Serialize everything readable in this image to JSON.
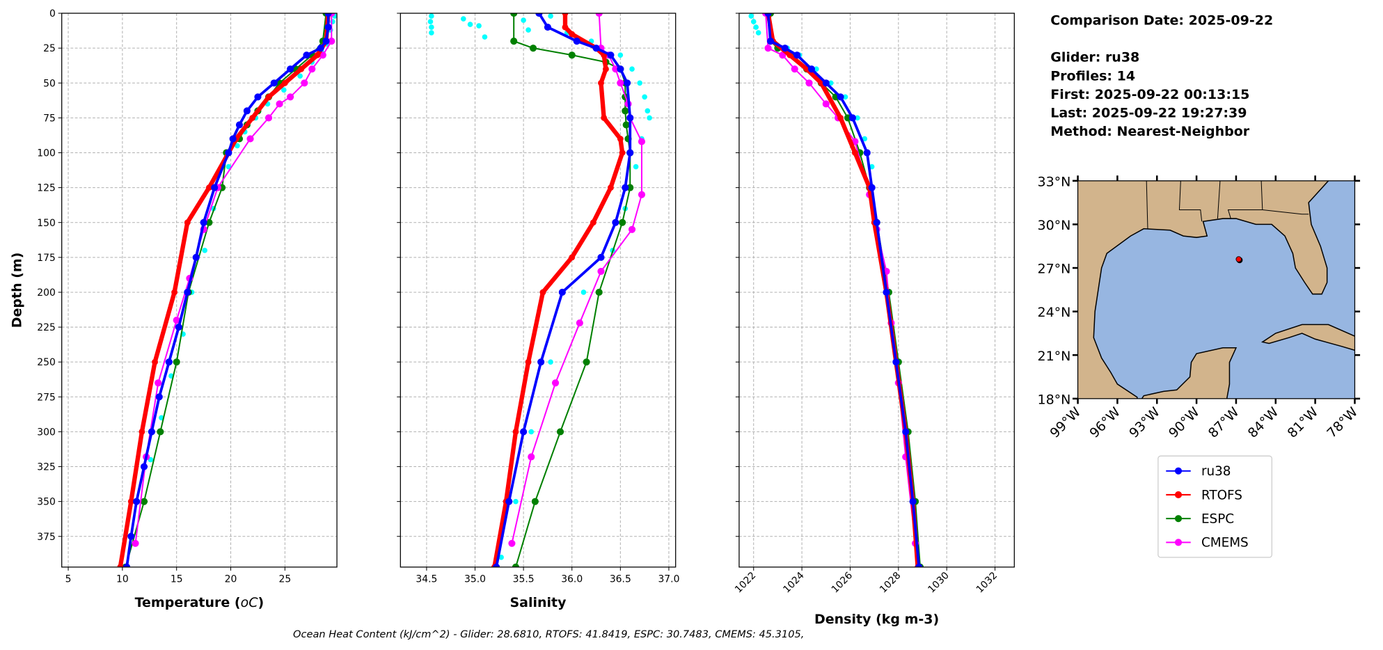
{
  "info": {
    "comparison_date": "Comparison Date: 2025-09-22",
    "glider": "Glider: ru38",
    "profiles": "Profiles: 14",
    "first": "First: 2025-09-22 00:13:15",
    "last": "Last: 2025-09-22 19:27:39",
    "method": "Method: Nearest-Neighbor"
  },
  "footer": "Ocean Heat Content (kJ/cm^2) - Glider: 28.6810,  RTOFS: 41.8419,  ESPC: 30.7483,  CMEMS: 45.3105,",
  "colors": {
    "ru38": "#0000ff",
    "RTOFS": "#ff0000",
    "ESPC": "#008000",
    "CMEMS": "#ff00ff",
    "glider_profiles": "#00ffff",
    "land": "#d2b48c",
    "ocean": "#97b6e1"
  },
  "legend": [
    "ru38",
    "RTOFS",
    "ESPC",
    "CMEMS"
  ],
  "chart_data": [
    {
      "type": "line",
      "xlabel": "Temperature (",
      "xlabel_unit": "oC",
      "xlabel_end": ")",
      "ylabel": "Depth (m)",
      "xlim": [
        4.4,
        29.8
      ],
      "ylim": [
        397,
        0
      ],
      "grid": true,
      "xticks": [
        5,
        10,
        15,
        20,
        25
      ],
      "yticks": [
        0,
        25,
        50,
        75,
        100,
        125,
        150,
        175,
        200,
        225,
        250,
        275,
        300,
        325,
        350,
        375
      ],
      "glider_profiles": [
        [
          2,
          29.6
        ],
        [
          6,
          29.4
        ],
        [
          12,
          29.2
        ],
        [
          22,
          28.9
        ],
        [
          28,
          28.4
        ],
        [
          35,
          27.5
        ],
        [
          45,
          26.4
        ],
        [
          55,
          24.9
        ],
        [
          65,
          23.4
        ],
        [
          75,
          22.3
        ],
        [
          85,
          21.3
        ],
        [
          95,
          20.6
        ],
        [
          110,
          19.8
        ],
        [
          140,
          18.4
        ],
        [
          170,
          17.6
        ],
        [
          200,
          16.4
        ],
        [
          230,
          15.6
        ],
        [
          260,
          14.5
        ],
        [
          290,
          13.6
        ],
        [
          320,
          12.6
        ],
        [
          350,
          11.8
        ],
        [
          380,
          11.1
        ]
      ],
      "series": [
        {
          "name": "ru38",
          "depth": [
            0,
            10,
            20,
            25,
            30,
            40,
            50,
            60,
            70,
            80,
            90,
            100,
            125,
            150,
            175,
            200,
            225,
            250,
            275,
            300,
            325,
            350,
            375,
            397
          ],
          "values": [
            29,
            29,
            28.8,
            28.3,
            27,
            25.5,
            24,
            22.5,
            21.5,
            20.8,
            20.2,
            19.8,
            18.5,
            17.5,
            16.8,
            16,
            15.2,
            14.3,
            13.4,
            12.7,
            12,
            11.3,
            10.8,
            10.4
          ]
        },
        {
          "name": "RTOFS",
          "depth": [
            0,
            20,
            30,
            40,
            50,
            60,
            75,
            90,
            100,
            125,
            150,
            200,
            250,
            300,
            350,
            397
          ],
          "values": [
            29,
            28.8,
            28,
            26.5,
            25,
            23.5,
            22,
            20.5,
            19.8,
            18,
            16,
            14.8,
            13,
            11.8,
            10.8,
            9.8
          ]
        },
        {
          "name": "ESPC",
          "depth": [
            0,
            20,
            30,
            40,
            50,
            60,
            70,
            80,
            90,
            100,
            125,
            150,
            200,
            250,
            300,
            350,
            397
          ],
          "values": [
            28.8,
            28.5,
            27.5,
            26,
            24.5,
            23.5,
            22.5,
            21.5,
            20.8,
            19.6,
            19.2,
            18,
            16.1,
            15,
            13.5,
            12,
            10.3
          ]
        },
        {
          "name": "CMEMS",
          "depth": [
            0,
            20,
            30,
            40,
            50,
            60,
            65,
            75,
            90,
            125,
            155,
            190,
            220,
            265,
            318,
            380
          ],
          "values": [
            29.3,
            29.3,
            28.5,
            27.5,
            26.8,
            25.5,
            24.5,
            23.5,
            21.8,
            18.8,
            17.5,
            16.2,
            15,
            13.3,
            12.2,
            11.2
          ]
        }
      ]
    },
    {
      "type": "line",
      "xlabel": "Salinity",
      "xlim": [
        34.23,
        37.07
      ],
      "ylim": [
        397,
        0
      ],
      "grid": true,
      "xticks": [
        34.5,
        35.0,
        35.5,
        36.0,
        36.5,
        37.0
      ],
      "xtick_labels": [
        "34.5",
        "35.0",
        "35.5",
        "36.0",
        "36.5",
        "37.0"
      ],
      "yticks": [
        0,
        25,
        50,
        75,
        100,
        125,
        150,
        175,
        200,
        225,
        250,
        275,
        300,
        325,
        350,
        375
      ],
      "glider_profiles": [
        [
          2,
          34.55
        ],
        [
          6,
          34.54
        ],
        [
          10,
          34.55
        ],
        [
          14,
          34.55
        ],
        [
          4,
          34.88
        ],
        [
          8,
          34.95
        ],
        [
          9,
          35.04
        ],
        [
          17,
          35.1
        ],
        [
          5,
          35.5
        ],
        [
          12,
          35.55
        ],
        [
          2,
          35.78
        ],
        [
          14,
          35.95
        ],
        [
          20,
          36.2
        ],
        [
          30,
          36.5
        ],
        [
          40,
          36.62
        ],
        [
          50,
          36.7
        ],
        [
          60,
          36.75
        ],
        [
          70,
          36.78
        ],
        [
          75,
          36.8
        ],
        [
          90,
          36.72
        ],
        [
          110,
          36.66
        ],
        [
          140,
          36.55
        ],
        [
          170,
          36.42
        ],
        [
          200,
          36.12
        ],
        [
          250,
          35.78
        ],
        [
          300,
          35.58
        ],
        [
          350,
          35.42
        ],
        [
          390,
          35.27
        ]
      ],
      "series": [
        {
          "name": "ru38",
          "depth": [
            0,
            10,
            20,
            25,
            30,
            40,
            50,
            75,
            100,
            125,
            150,
            175,
            200,
            250,
            300,
            350,
            397
          ],
          "values": [
            35.66,
            35.75,
            36.05,
            36.25,
            36.4,
            36.5,
            36.57,
            36.6,
            36.6,
            36.55,
            36.45,
            36.3,
            35.9,
            35.68,
            35.5,
            35.35,
            35.22
          ]
        },
        {
          "name": "RTOFS",
          "depth": [
            0,
            10,
            15,
            25,
            30,
            40,
            50,
            75,
            90,
            100,
            125,
            150,
            175,
            200,
            250,
            300,
            350,
            397
          ],
          "values": [
            35.93,
            35.93,
            36.0,
            36.25,
            36.33,
            36.35,
            36.3,
            36.33,
            36.5,
            36.52,
            36.4,
            36.22,
            36.0,
            35.7,
            35.55,
            35.42,
            35.32,
            35.2
          ]
        },
        {
          "name": "ESPC",
          "depth": [
            0,
            20,
            25,
            30,
            35,
            40,
            50,
            60,
            70,
            80,
            90,
            100,
            125,
            150,
            200,
            250,
            300,
            350,
            397
          ],
          "values": [
            35.4,
            35.4,
            35.6,
            36.0,
            36.35,
            36.5,
            36.55,
            36.55,
            36.55,
            36.56,
            36.58,
            36.6,
            36.6,
            36.52,
            36.28,
            36.15,
            35.88,
            35.62,
            35.42
          ]
        },
        {
          "name": "CMEMS",
          "depth": [
            0,
            25,
            30,
            40,
            50,
            65,
            75,
            92,
            130,
            155,
            185,
            222,
            265,
            318,
            380
          ],
          "values": [
            36.28,
            36.3,
            36.38,
            36.45,
            36.5,
            36.58,
            36.6,
            36.72,
            36.72,
            36.62,
            36.3,
            36.08,
            35.83,
            35.58,
            35.38
          ]
        }
      ]
    },
    {
      "type": "line",
      "xlabel": "Density (kg m-3)",
      "xlim": [
        1021.4,
        1032.8
      ],
      "ylim": [
        397,
        0
      ],
      "grid": true,
      "xticks": [
        1022,
        1024,
        1026,
        1028,
        1030,
        1032
      ],
      "yticks": [
        0,
        25,
        50,
        75,
        100,
        125,
        150,
        175,
        200,
        225,
        250,
        275,
        300,
        325,
        350,
        375
      ],
      "glider_profiles": [
        [
          2,
          1021.9
        ],
        [
          6,
          1022.0
        ],
        [
          10,
          1022.1
        ],
        [
          14,
          1022.2
        ],
        [
          25,
          1023.4
        ],
        [
          30,
          1023.9
        ],
        [
          40,
          1024.6
        ],
        [
          50,
          1025.2
        ],
        [
          60,
          1025.8
        ],
        [
          75,
          1026.3
        ],
        [
          90,
          1026.6
        ],
        [
          110,
          1026.9
        ]
      ],
      "series": [
        {
          "name": "ru38",
          "depth": [
            0,
            20,
            25,
            30,
            40,
            50,
            60,
            75,
            100,
            125,
            150,
            200,
            250,
            300,
            350,
            397
          ],
          "values": [
            1022.6,
            1022.7,
            1023.3,
            1023.8,
            1024.4,
            1025.0,
            1025.6,
            1026.1,
            1026.7,
            1026.9,
            1027.1,
            1027.5,
            1027.9,
            1028.3,
            1028.6,
            1028.85
          ]
        },
        {
          "name": "RTOFS",
          "depth": [
            0,
            20,
            30,
            40,
            50,
            75,
            100,
            125,
            150,
            200,
            250,
            300,
            350,
            397
          ],
          "values": [
            1022.6,
            1022.8,
            1023.5,
            1024.2,
            1024.8,
            1025.6,
            1026.2,
            1026.8,
            1027.0,
            1027.5,
            1027.9,
            1028.3,
            1028.6,
            1028.8
          ]
        },
        {
          "name": "ESPC",
          "depth": [
            0,
            20,
            25,
            30,
            40,
            50,
            60,
            75,
            100,
            125,
            150,
            200,
            250,
            300,
            350,
            397
          ],
          "values": [
            1022.7,
            1022.7,
            1023.0,
            1023.6,
            1024.2,
            1024.8,
            1025.4,
            1025.9,
            1026.4,
            1026.8,
            1027.1,
            1027.6,
            1028.0,
            1028.4,
            1028.7,
            1028.9
          ]
        },
        {
          "name": "CMEMS",
          "depth": [
            0,
            25,
            30,
            40,
            50,
            65,
            75,
            92,
            130,
            155,
            185,
            222,
            265,
            318,
            380
          ],
          "values": [
            1022.5,
            1022.6,
            1023.2,
            1023.7,
            1024.3,
            1025.0,
            1025.5,
            1026.2,
            1026.8,
            1027.1,
            1027.5,
            1027.7,
            1028.0,
            1028.3,
            1028.7
          ]
        }
      ]
    }
  ],
  "map": {
    "lon_range": [
      -99,
      -78
    ],
    "lat_range": [
      18,
      33
    ],
    "lat_ticks": [
      33,
      30,
      27,
      24,
      21,
      18
    ],
    "lat_labels": [
      "33°N",
      "30°N",
      "27°N",
      "24°N",
      "21°N",
      "18°N"
    ],
    "lon_ticks": [
      -99,
      -96,
      -93,
      -90,
      -87,
      -84,
      -81,
      -78
    ],
    "lon_labels": [
      "99°W",
      "96°W",
      "93°W",
      "90°W",
      "87°W",
      "84°W",
      "81°W",
      "78°W"
    ],
    "glider_location": [
      -86.8,
      27.6
    ]
  }
}
